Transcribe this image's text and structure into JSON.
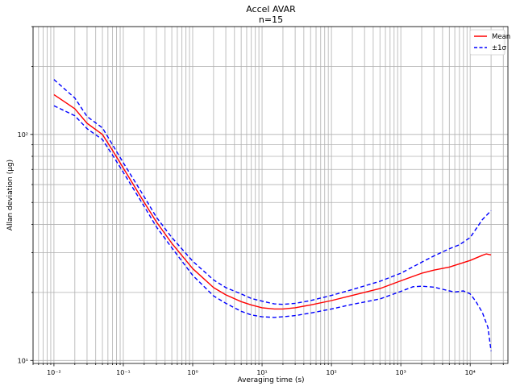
{
  "chart_data": {
    "type": "line",
    "title": "Accel AVAR",
    "subtitle": "n=15",
    "xlabel": "Averaging time (s)",
    "ylabel": "Allan deviation (µg)",
    "xscale": "log",
    "yscale": "log",
    "xlim": [
      0.005,
      35000
    ],
    "ylim": [
      9.7,
      300
    ],
    "grid": "major and minor",
    "legend_position": "top-right",
    "x_tick_labels": [
      "10⁻²",
      "10⁻¹",
      "10⁰",
      "10¹",
      "10²",
      "10³",
      "10⁴"
    ],
    "x_tick_values": [
      0.01,
      0.1,
      1,
      10,
      100,
      1000,
      10000
    ],
    "y_tick_labels": [
      "10¹",
      "10²"
    ],
    "y_tick_values": [
      10,
      100
    ],
    "series": [
      {
        "name": "Mean",
        "color": "#ff0000",
        "style": "solid",
        "points": [
          [
            0.01,
            150
          ],
          [
            0.02,
            130
          ],
          [
            0.03,
            112
          ],
          [
            0.05,
            100
          ],
          [
            0.07,
            85
          ],
          [
            0.1,
            71
          ],
          [
            0.2,
            50
          ],
          [
            0.3,
            41
          ],
          [
            0.5,
            33
          ],
          [
            1,
            25.5
          ],
          [
            2,
            21
          ],
          [
            3,
            19.5
          ],
          [
            5,
            18.2
          ],
          [
            7,
            17.6
          ],
          [
            10,
            17.1
          ],
          [
            15,
            16.9
          ],
          [
            20,
            16.9
          ],
          [
            30,
            17.1
          ],
          [
            50,
            17.6
          ],
          [
            100,
            18.4
          ],
          [
            200,
            19.4
          ],
          [
            500,
            20.8
          ],
          [
            1000,
            22.5
          ],
          [
            2000,
            24.3
          ],
          [
            3000,
            25.1
          ],
          [
            5000,
            25.9
          ],
          [
            10000,
            27.7
          ],
          [
            15000,
            29.2
          ],
          [
            17000,
            29.6
          ],
          [
            20000,
            29.3
          ]
        ]
      },
      {
        "name": "±1σ",
        "color": "#0000ff",
        "style": "dashed",
        "points": [
          [
            0.01,
            175
          ],
          [
            0.02,
            145
          ],
          [
            0.03,
            120
          ],
          [
            0.05,
            107
          ],
          [
            0.07,
            90
          ],
          [
            0.1,
            75
          ],
          [
            0.2,
            53
          ],
          [
            0.3,
            43
          ],
          [
            0.5,
            35
          ],
          [
            1,
            27.5
          ],
          [
            2,
            22.7
          ],
          [
            3,
            21
          ],
          [
            5,
            19.7
          ],
          [
            7,
            18.8
          ],
          [
            10,
            18.3
          ],
          [
            15,
            17.8
          ],
          [
            20,
            17.7
          ],
          [
            30,
            17.9
          ],
          [
            50,
            18.4
          ],
          [
            100,
            19.4
          ],
          [
            200,
            20.6
          ],
          [
            500,
            22.4
          ],
          [
            1000,
            24.3
          ],
          [
            2000,
            27.2
          ],
          [
            3000,
            29
          ],
          [
            5000,
            31.2
          ],
          [
            7000,
            32.5
          ],
          [
            10000,
            35
          ],
          [
            12000,
            38
          ],
          [
            15000,
            42
          ],
          [
            20000,
            46
          ]
        ]
      },
      {
        "name": "",
        "color": "#0000ff",
        "style": "dashed",
        "points": [
          [
            0.01,
            134
          ],
          [
            0.02,
            121
          ],
          [
            0.03,
            106
          ],
          [
            0.05,
            95
          ],
          [
            0.07,
            81
          ],
          [
            0.1,
            68
          ],
          [
            0.2,
            48
          ],
          [
            0.3,
            39
          ],
          [
            0.5,
            31.5
          ],
          [
            1,
            23.8
          ],
          [
            2,
            19.3
          ],
          [
            3,
            17.9
          ],
          [
            5,
            16.5
          ],
          [
            7,
            15.9
          ],
          [
            10,
            15.6
          ],
          [
            15,
            15.5
          ],
          [
            20,
            15.6
          ],
          [
            30,
            15.8
          ],
          [
            50,
            16.2
          ],
          [
            100,
            16.9
          ],
          [
            200,
            17.7
          ],
          [
            500,
            18.7
          ],
          [
            1000,
            20.2
          ],
          [
            1500,
            21.2
          ],
          [
            2000,
            21.3
          ],
          [
            3000,
            21.1
          ],
          [
            5000,
            20.3
          ],
          [
            6000,
            20.1
          ],
          [
            8000,
            20.3
          ],
          [
            10000,
            19.7
          ],
          [
            12000,
            18.3
          ],
          [
            15000,
            16.3
          ],
          [
            18000,
            14
          ],
          [
            20000,
            11
          ]
        ]
      }
    ]
  }
}
